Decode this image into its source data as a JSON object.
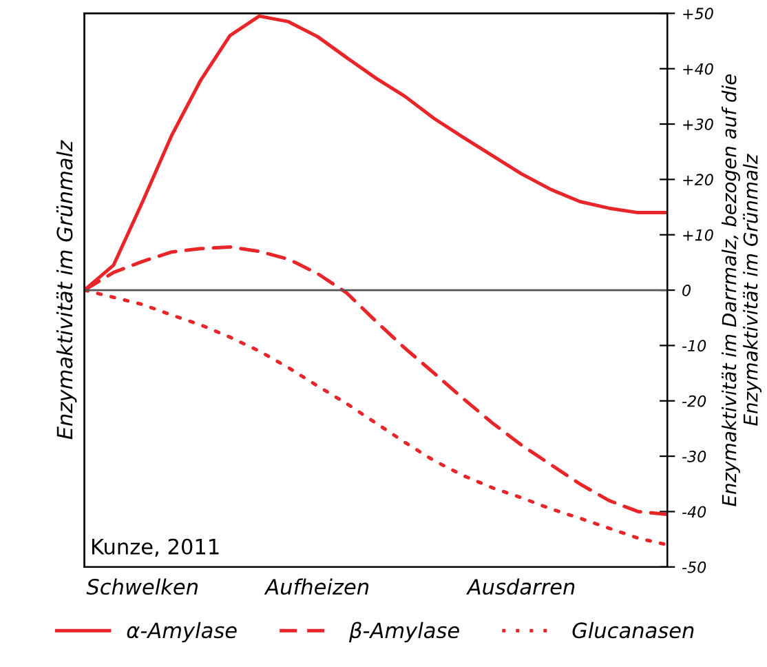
{
  "chart_data": {
    "type": "line",
    "ylabel": "Enzymaktivität im Grünmalz",
    "y2label": "Enzymaktivität im Darrmalz, bezogen auf die\nEnzymaktivität im Grünmalz",
    "annotations": [
      "Kunze, 2011"
    ],
    "categories": [
      null,
      null,
      "Schwelken",
      null,
      null,
      null,
      null,
      null,
      "Aufheizen",
      null,
      null,
      null,
      null,
      null,
      null,
      "Ausdarren",
      null,
      null,
      null,
      null,
      null
    ],
    "y2lim": [
      -50,
      50
    ],
    "y2ticks": [
      {
        "value": 50,
        "label": "+50"
      },
      {
        "value": 40,
        "label": "+40"
      },
      {
        "value": 30,
        "label": "+30"
      },
      {
        "value": 20,
        "label": "+20"
      },
      {
        "value": 10,
        "label": "+10"
      },
      0,
      {
        "value": -10,
        "label": "-10"
      },
      {
        "value": -20,
        "label": "-20"
      },
      {
        "value": -30,
        "label": "-30"
      },
      {
        "value": -40,
        "label": "-40"
      },
      {
        "value": -50,
        "label": "-50"
      }
    ],
    "ref_lines": [
      {
        "axis": "y2",
        "value": 0,
        "color": "#555555"
      }
    ],
    "grid": false,
    "legend": "bottom",
    "marker": "none",
    "series": [
      {
        "name": "α-Amylase",
        "color": "#e8262a",
        "axis": "y2",
        "line_style": "solid",
        "values": [
          0,
          4.5,
          16,
          28,
          38,
          46,
          49.5,
          48.5,
          45.8,
          42,
          38.3,
          35,
          31,
          27.6,
          24.3,
          21,
          18.2,
          16,
          14.8,
          14,
          14
        ]
      },
      {
        "name": "β-Amylase",
        "color": "#e8262a",
        "axis": "y2",
        "line_style": "dashed",
        "values": [
          0,
          3.2,
          5.2,
          6.9,
          7.5,
          7.8,
          7,
          5.6,
          3,
          -0.5,
          -5.6,
          -10.5,
          -15,
          -19.6,
          -24,
          -28,
          -31.5,
          -35,
          -38,
          -40,
          -40.5
        ]
      },
      {
        "name": "Glucanasen",
        "color": "#e8262a",
        "axis": "y2",
        "line_style": "dotted",
        "values": [
          0,
          -1.3,
          -2.6,
          -4.5,
          -6.3,
          -8.5,
          -11,
          -14,
          -17.3,
          -20.5,
          -24,
          -27.5,
          -30.8,
          -33.5,
          -35.7,
          -37.5,
          -39.5,
          -41.2,
          -43,
          -44.8,
          -46
        ]
      }
    ]
  }
}
